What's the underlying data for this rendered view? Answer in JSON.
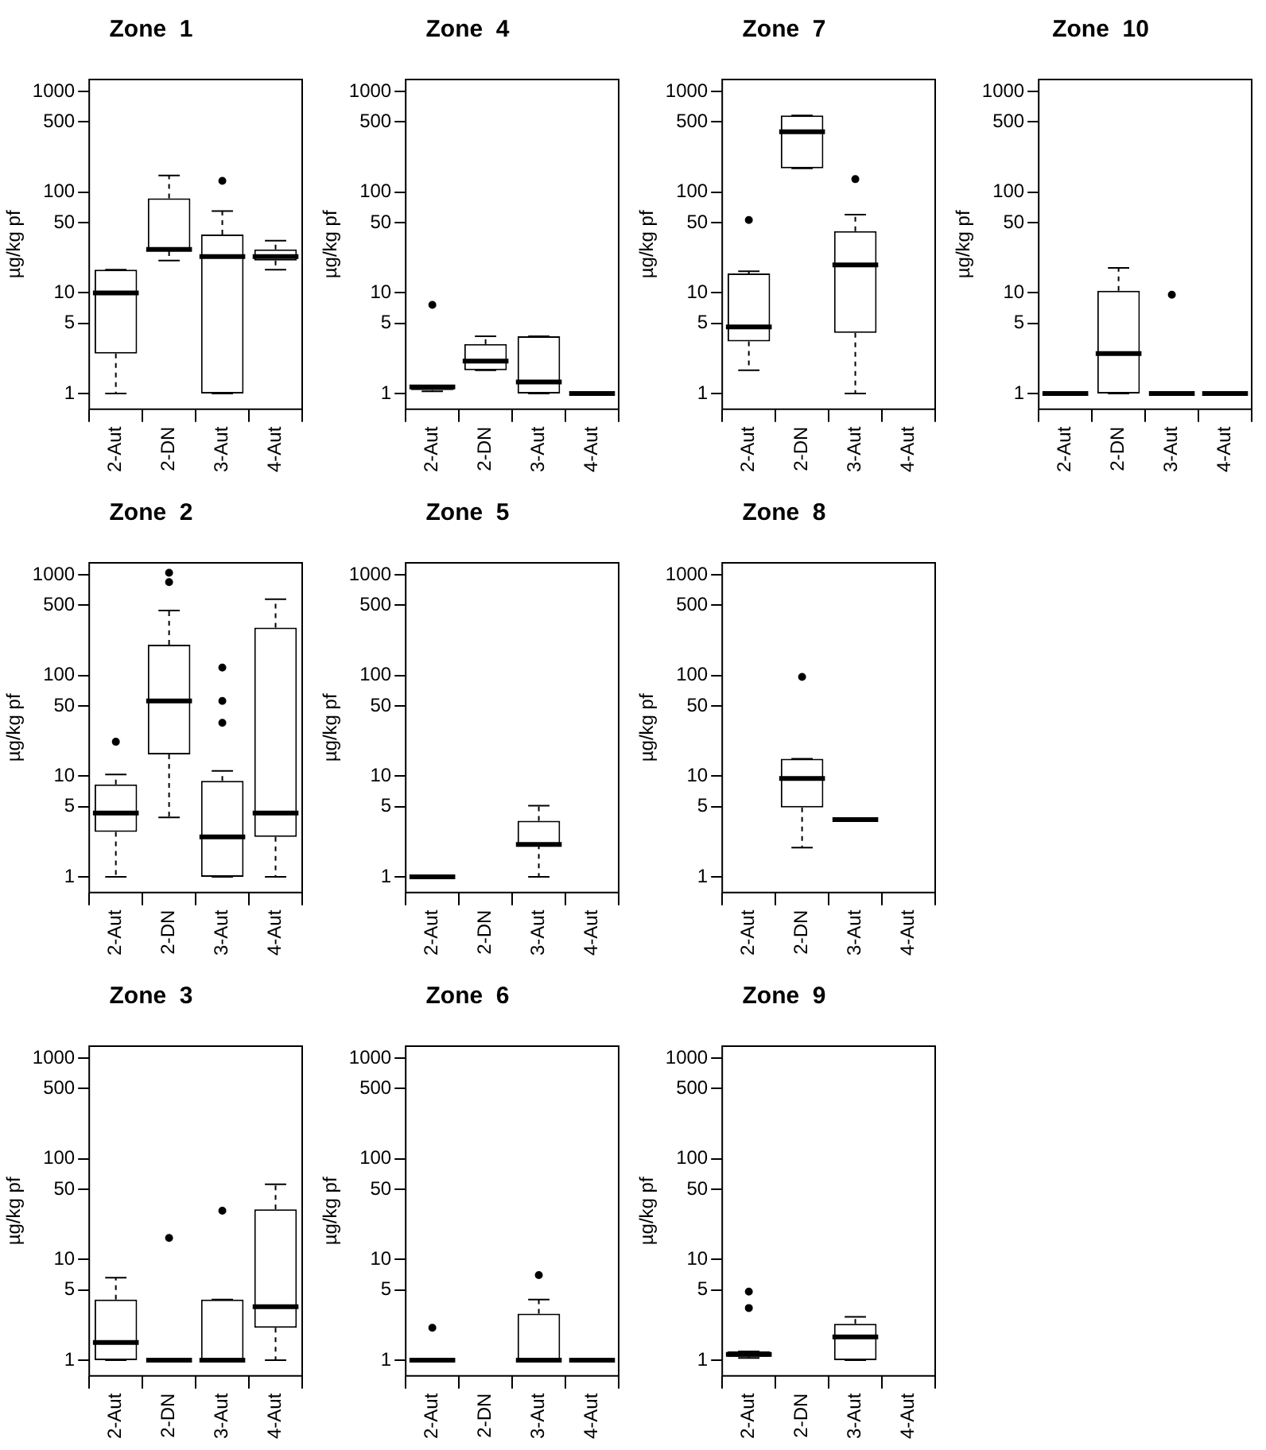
{
  "chart_data": [
    {
      "type": "box",
      "title": "Zone  1",
      "ylabel": "µg/kg pf",
      "categories": [
        "2-Aut",
        "2-DN",
        "3-Aut",
        "4-Aut"
      ],
      "log": "y",
      "ylim": [
        0.72,
        1320
      ],
      "yticks": [
        1,
        5,
        10,
        50,
        100,
        500,
        1000
      ],
      "boxes": [
        {
          "low": 1,
          "q1": 2.5,
          "median": 10,
          "q3": 17,
          "high": 17
        },
        {
          "low": 21,
          "q1": 26,
          "median": 27,
          "q3": 87,
          "high": 147
        },
        {
          "low": 1,
          "q1": 1,
          "median": 23,
          "q3": 38,
          "high": 65,
          "outliers": [
            130
          ]
        },
        {
          "low": 17,
          "q1": 21,
          "median": 23,
          "q3": 27,
          "high": 33
        }
      ]
    },
    {
      "type": "box",
      "title": "Zone  4",
      "ylabel": "µg/kg pf",
      "categories": [
        "2-Aut",
        "2-DN",
        "3-Aut",
        "4-Aut"
      ],
      "log": "y",
      "ylim": [
        0.72,
        1320
      ],
      "yticks": [
        1,
        5,
        10,
        50,
        100,
        500,
        1000
      ],
      "boxes": [
        {
          "low": 1.05,
          "q1": 1.08,
          "median": 1.16,
          "q3": 1.2,
          "high": 1.2,
          "outliers": [
            7.6
          ]
        },
        {
          "low": 1.7,
          "q1": 1.7,
          "median": 2.1,
          "q3": 3.1,
          "high": 3.7
        },
        {
          "low": 1,
          "q1": 1,
          "median": 1.3,
          "q3": 3.7,
          "high": 3.7
        },
        {
          "low": 1,
          "q1": 1,
          "median": 1,
          "q3": 1,
          "high": 1
        }
      ]
    },
    {
      "type": "box",
      "title": "Zone  7",
      "ylabel": "µg/kg pf",
      "categories": [
        "2-Aut",
        "2-DN",
        "3-Aut",
        "4-Aut"
      ],
      "log": "y",
      "ylim": [
        0.72,
        1320
      ],
      "yticks": [
        1,
        5,
        10,
        50,
        100,
        500,
        1000
      ],
      "boxes": [
        {
          "low": 1.7,
          "q1": 3.3,
          "median": 4.6,
          "q3": 15.6,
          "high": 16.4,
          "outliers": [
            53
          ]
        },
        {
          "low": 173,
          "q1": 173,
          "median": 400,
          "q3": 580,
          "high": 580
        },
        {
          "low": 1,
          "q1": 4,
          "median": 19,
          "q3": 41,
          "high": 60,
          "outliers": [
            135
          ]
        },
        null
      ]
    },
    {
      "type": "box",
      "title": "Zone  10",
      "ylabel": "µg/kg pf",
      "categories": [
        "2-Aut",
        "2-DN",
        "3-Aut",
        "4-Aut"
      ],
      "log": "y",
      "ylim": [
        0.72,
        1320
      ],
      "yticks": [
        1,
        5,
        10,
        50,
        100,
        500,
        1000
      ],
      "boxes": [
        {
          "low": 1,
          "q1": 1,
          "median": 1,
          "q3": 1,
          "high": 1
        },
        {
          "low": 1,
          "q1": 1,
          "median": 2.5,
          "q3": 10.5,
          "high": 17.7
        },
        {
          "low": 1,
          "q1": 1,
          "median": 1,
          "q3": 1,
          "high": 1,
          "outliers": [
            9.6
          ]
        },
        {
          "low": 1,
          "q1": 1,
          "median": 1,
          "q3": 1,
          "high": 1
        }
      ]
    },
    {
      "type": "box",
      "title": "Zone  2",
      "ylabel": "µg/kg pf",
      "categories": [
        "2-Aut",
        "2-DN",
        "3-Aut",
        "4-Aut"
      ],
      "log": "y",
      "ylim": [
        0.72,
        1320
      ],
      "yticks": [
        1,
        5,
        10,
        50,
        100,
        500,
        1000
      ],
      "boxes": [
        {
          "low": 1,
          "q1": 2.8,
          "median": 4.3,
          "q3": 8.3,
          "high": 10.4,
          "outliers": [
            22
          ]
        },
        {
          "low": 3.9,
          "q1": 16.5,
          "median": 56,
          "q3": 203,
          "high": 444,
          "outliers": [
            850,
            1050
          ]
        },
        {
          "low": 1,
          "q1": 1,
          "median": 2.5,
          "q3": 9,
          "high": 11.3,
          "outliers": [
            34,
            56,
            120
          ]
        },
        {
          "low": 1,
          "q1": 2.5,
          "median": 4.3,
          "q3": 300,
          "high": 575
        }
      ]
    },
    {
      "type": "box",
      "title": "Zone  5",
      "ylabel": "µg/kg pf",
      "categories": [
        "2-Aut",
        "2-DN",
        "3-Aut",
        "4-Aut"
      ],
      "log": "y",
      "ylim": [
        0.72,
        1320
      ],
      "yticks": [
        1,
        5,
        10,
        50,
        100,
        500,
        1000
      ],
      "boxes": [
        {
          "low": 1,
          "q1": 1,
          "median": 1,
          "q3": 1,
          "high": 1
        },
        null,
        {
          "low": 1,
          "q1": 2.1,
          "median": 2.1,
          "q3": 3.6,
          "high": 5.1
        },
        null
      ]
    },
    {
      "type": "box",
      "title": "Zone  8",
      "ylabel": "µg/kg pf",
      "categories": [
        "2-Aut",
        "2-DN",
        "3-Aut",
        "4-Aut"
      ],
      "log": "y",
      "ylim": [
        0.72,
        1320
      ],
      "yticks": [
        1,
        5,
        10,
        50,
        100,
        500,
        1000
      ],
      "boxes": [
        null,
        {
          "low": 1.95,
          "q1": 4.9,
          "median": 9.5,
          "q3": 14.9,
          "high": 14.9,
          "outliers": [
            97
          ]
        },
        {
          "low": 3.7,
          "q1": 3.7,
          "median": 3.7,
          "q3": 3.7,
          "high": 3.7
        },
        null
      ]
    },
    {
      "type": "box",
      "title": "Zone  3",
      "ylabel": "µg/kg pf",
      "categories": [
        "2-Aut",
        "2-DN",
        "3-Aut",
        "4-Aut"
      ],
      "log": "y",
      "ylim": [
        0.72,
        1320
      ],
      "yticks": [
        1,
        5,
        10,
        50,
        100,
        500,
        1000
      ],
      "boxes": [
        {
          "low": 1,
          "q1": 1,
          "median": 1.5,
          "q3": 4,
          "high": 6.6
        },
        {
          "low": 1,
          "q1": 1,
          "median": 1,
          "q3": 1,
          "high": 1,
          "outliers": [
            16.4
          ]
        },
        {
          "low": 1,
          "q1": 1,
          "median": 1,
          "q3": 4,
          "high": 4,
          "outliers": [
            30.6
          ]
        },
        {
          "low": 1,
          "q1": 2.1,
          "median": 3.4,
          "q3": 31.6,
          "high": 56
        }
      ]
    },
    {
      "type": "box",
      "title": "Zone  6",
      "ylabel": "µg/kg pf",
      "categories": [
        "2-Aut",
        "2-DN",
        "3-Aut",
        "4-Aut"
      ],
      "log": "y",
      "ylim": [
        0.72,
        1320
      ],
      "yticks": [
        1,
        5,
        10,
        50,
        100,
        500,
        1000
      ],
      "boxes": [
        {
          "low": 1,
          "q1": 1,
          "median": 1,
          "q3": 1,
          "high": 1,
          "outliers": [
            2.1
          ]
        },
        null,
        {
          "low": 1,
          "q1": 1,
          "median": 1,
          "q3": 2.9,
          "high": 4,
          "outliers": [
            7
          ]
        },
        {
          "low": 1,
          "q1": 1,
          "median": 1,
          "q3": 1,
          "high": 1
        }
      ]
    },
    {
      "type": "box",
      "title": "Zone  9",
      "ylabel": "µg/kg pf",
      "categories": [
        "2-Aut",
        "2-DN",
        "3-Aut",
        "4-Aut"
      ],
      "log": "y",
      "ylim": [
        0.72,
        1320
      ],
      "yticks": [
        1,
        5,
        10,
        50,
        100,
        500,
        1000
      ],
      "boxes": [
        {
          "low": 1.05,
          "q1": 1.08,
          "median": 1.14,
          "q3": 1.22,
          "high": 1.22,
          "outliers": [
            3.3,
            4.8
          ]
        },
        null,
        {
          "low": 1,
          "q1": 1,
          "median": 1.7,
          "q3": 2.3,
          "high": 2.7
        },
        null
      ]
    }
  ]
}
